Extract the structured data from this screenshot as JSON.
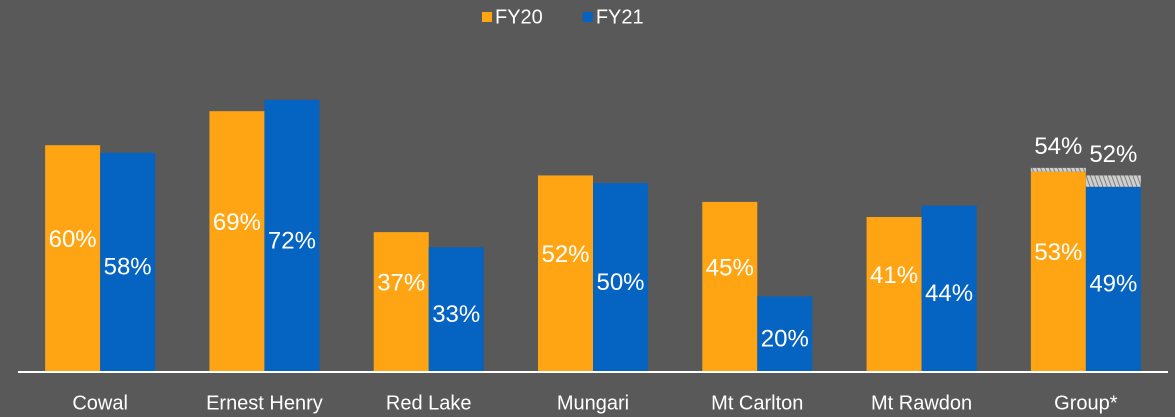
{
  "chart_data": {
    "type": "bar",
    "categories": [
      "Cowal",
      "Ernest Henry",
      "Red Lake",
      "Mungari",
      "Mt Carlton",
      "Mt Rawdon",
      "Group*"
    ],
    "series": [
      {
        "name": "FY20",
        "color": "#ffa514",
        "values": [
          60,
          69,
          37,
          52,
          45,
          41,
          53
        ],
        "value_labels": [
          "60%",
          "69%",
          "37%",
          "52%",
          "45%",
          "41%",
          "53%"
        ],
        "upper_values": [
          null,
          null,
          null,
          null,
          null,
          null,
          54
        ],
        "upper_value_labels": [
          null,
          null,
          null,
          null,
          null,
          null,
          "54%"
        ]
      },
      {
        "name": "FY21",
        "color": "#0563c1",
        "values": [
          58,
          72,
          33,
          50,
          20,
          44,
          49
        ],
        "value_labels": [
          "58%",
          "72%",
          "33%",
          "50%",
          "20%",
          "44%",
          "49%"
        ],
        "upper_values": [
          null,
          null,
          null,
          null,
          null,
          null,
          52
        ],
        "upper_value_labels": [
          null,
          null,
          null,
          null,
          null,
          null,
          "52%"
        ]
      }
    ],
    "ylim": [
      0,
      75
    ],
    "legend": "top"
  }
}
